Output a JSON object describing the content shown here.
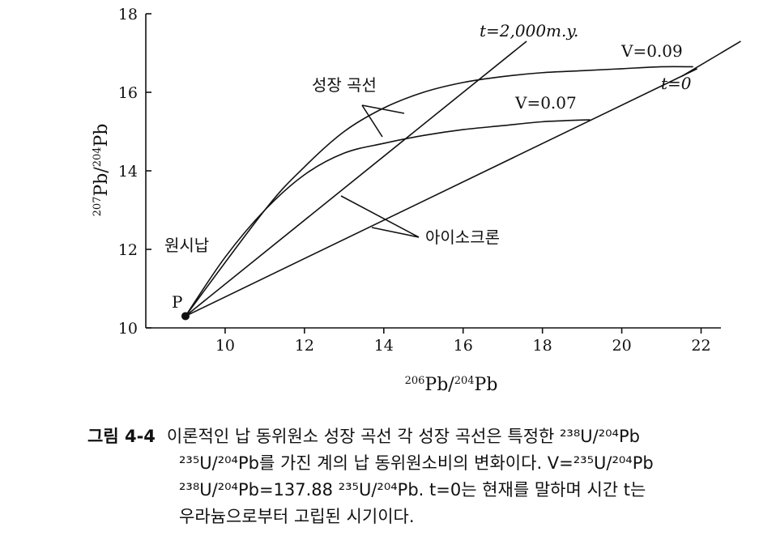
{
  "chart_data": {
    "type": "line",
    "xlabel_parts": [
      "206",
      "Pb/",
      "204",
      "Pb"
    ],
    "ylabel_parts": [
      "207",
      "Pb/",
      "204",
      "Pb"
    ],
    "xlim": [
      8.0,
      22.5
    ],
    "ylim": [
      10,
      18
    ],
    "x_ticks": [
      "10",
      "12",
      "14",
      "16",
      "18",
      "20",
      "22"
    ],
    "y_ticks": [
      "10",
      "12",
      "14",
      "16",
      "18"
    ],
    "series": [
      {
        "name": "V=0.09",
        "kind": "growth-curve",
        "x": [
          9.0,
          11.0,
          12.0,
          13.0,
          14.0,
          15.0,
          16.0,
          17.0,
          18.0,
          19.0,
          20.0,
          21.0,
          21.8
        ],
        "y": [
          10.3,
          13.0,
          14.1,
          15.0,
          15.6,
          16.0,
          16.25,
          16.4,
          16.5,
          16.55,
          16.6,
          16.65,
          16.65
        ]
      },
      {
        "name": "V=0.07",
        "kind": "growth-curve",
        "x": [
          9.0,
          10.0,
          11.0,
          12.0,
          13.0,
          14.0,
          15.0,
          16.0,
          17.0,
          18.0,
          19.2
        ],
        "y": [
          10.3,
          11.8,
          13.0,
          13.9,
          14.45,
          14.7,
          14.9,
          15.05,
          15.15,
          15.25,
          15.3
        ]
      },
      {
        "name": "t=2,000m.y.",
        "kind": "isochron",
        "x": [
          9.0,
          17.6
        ],
        "y": [
          10.3,
          17.3
        ]
      },
      {
        "name": "t=0",
        "kind": "isochron",
        "x": [
          9.0,
          21.9
        ],
        "y": [
          10.3,
          16.6
        ]
      },
      {
        "name": "",
        "kind": "isochron-extension",
        "x": [
          21.5,
          23.0
        ],
        "y": [
          16.4,
          17.3
        ]
      }
    ],
    "point": {
      "label": "P",
      "x": 9.0,
      "y": 10.3
    },
    "annotations": {
      "t2000": "t=2,000m.y.",
      "v009": "V=0.09",
      "t0": "t=0",
      "v007": "V=0.07",
      "growth_curve": "성장 곡선",
      "isochron": "아이소크론",
      "primordial_lead": "원시납"
    }
  },
  "caption": {
    "label": "그림 4-4",
    "line1": "이론적인 납 동위원소 성장 곡선 각 성장 곡선은 특정한 ²³⁸U/²⁰⁴Pb",
    "line2": "²³⁵U/²⁰⁴Pb를 가진 계의 납 동위원소비의 변화이다. V=²³⁵U/²⁰⁴Pb",
    "line3": "²³⁸U/²⁰⁴Pb=137.88 ²³⁵U/²⁰⁴Pb. t=0는 현재를 말하며 시간 t는",
    "line4": "우라늄으로부터 고립된 시기이다."
  }
}
